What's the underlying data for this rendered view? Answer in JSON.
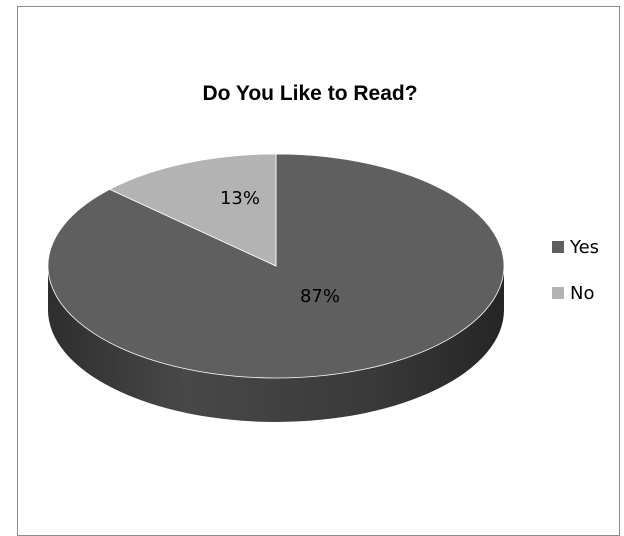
{
  "chart_data": {
    "type": "pie",
    "title": "Do You Like to Read?",
    "three_d": true,
    "categories": [
      "Yes",
      "No"
    ],
    "values": [
      87,
      13
    ],
    "data_labels": [
      "87%",
      "13%"
    ],
    "colors": [
      "#5f5f5f",
      "#b3b3b3"
    ],
    "legend_position": "right"
  }
}
